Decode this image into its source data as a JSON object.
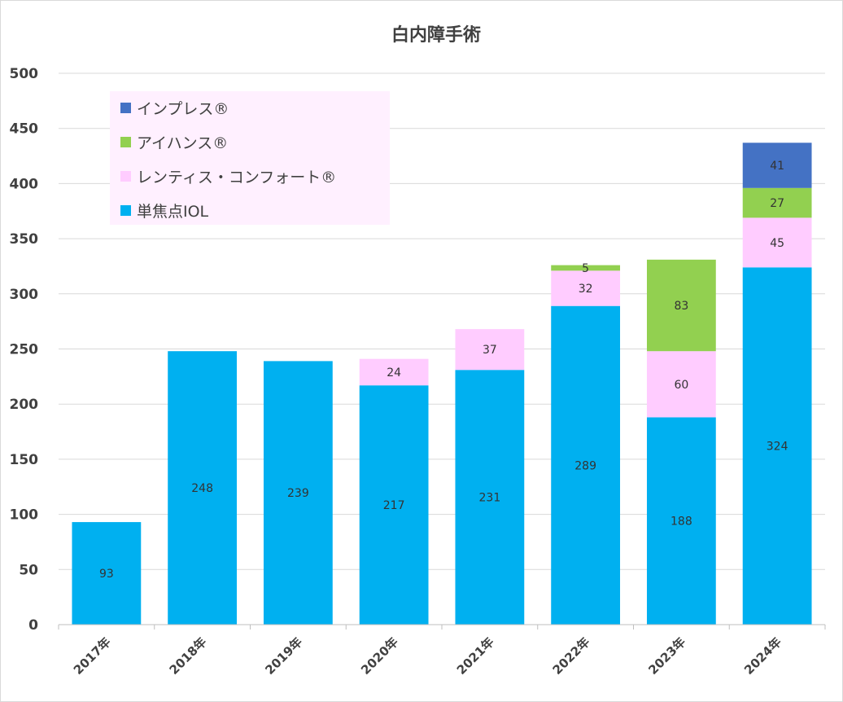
{
  "chart_data": {
    "type": "bar",
    "stacked": true,
    "title": "白内障手術",
    "xlabel": "",
    "ylabel": "",
    "ylim": [
      0,
      500
    ],
    "yticks": [
      0,
      50,
      100,
      150,
      200,
      250,
      300,
      350,
      400,
      450,
      500
    ],
    "grid": true,
    "legend_position": "top-left",
    "categories": [
      "2017年",
      "2018年",
      "2019年",
      "2020年",
      "2021年",
      "2022年",
      "2023年",
      "2024年"
    ],
    "series": [
      {
        "name": "単焦点IOL",
        "color": "#00B0F0",
        "values": [
          93,
          248,
          239,
          217,
          231,
          289,
          188,
          324
        ]
      },
      {
        "name": "レンティス・コンフォート®",
        "color": "#FFCCFF",
        "values": [
          0,
          0,
          0,
          24,
          37,
          32,
          60,
          45
        ]
      },
      {
        "name": "アイハンス®",
        "color": "#92D050",
        "values": [
          0,
          0,
          0,
          0,
          0,
          5,
          83,
          27
        ]
      },
      {
        "name": "インプレス®",
        "color": "#4472C4",
        "values": [
          0,
          0,
          0,
          0,
          0,
          0,
          0,
          41
        ]
      }
    ],
    "legend_order": [
      "インプレス®",
      "アイハンス®",
      "レンティス・コンフォート®",
      "単焦点IOL"
    ],
    "legend_background": "#FFF0FF"
  }
}
